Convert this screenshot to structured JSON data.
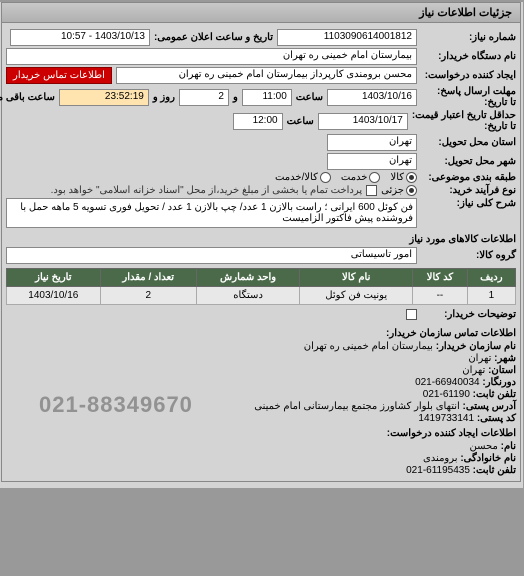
{
  "panel": {
    "title": "جزئیات اطلاعات نیاز"
  },
  "header": {
    "need_no_label": "شماره نیاز:",
    "need_no": "1103090614001812",
    "announce_label": "تاریخ و ساعت اعلان عمومی:",
    "announce_value": "1403/10/13 - 10:57",
    "buyer_device_label": "نام دستگاه خریدار:",
    "buyer_device": "بیمارستان امام خمینی ره  تهران",
    "requester_label": "ایجاد کننده درخواست:",
    "requester": "محسن برومندی کارپرداز بیمارستان امام خمینی ره  تهران",
    "contact_btn": "اطلاعات تماس خریدار",
    "deadline_send_label": "مهلت ارسال پاسخ:",
    "to_date_label": "تا تاریخ:",
    "deadline_date": "1403/10/16",
    "hour_label": "ساعت",
    "deadline_hour": "11:00",
    "and_label": "و",
    "days": "2",
    "days_label": "روز و",
    "remain": "23:52:19",
    "remain_label": "ساعت باقی مانده",
    "min_valid_label": "حداقل تاریخ اعتبار قیمت:",
    "min_valid_to_label": "تا تاریخ:",
    "min_valid_date": "1403/10/17",
    "min_valid_hour": "12:00",
    "province_label": "استان محل تحویل:",
    "province": "تهران",
    "city_label": "شهر محل تحویل:",
    "city": "تهران",
    "package_label": "طبقه بندی موضوعی:",
    "package_opts": {
      "kala": "کالا",
      "khadamat": "خدمت",
      "kala_khadamat": "کالا/خدمت",
      "selected": "kala"
    },
    "process_label": "نوع فرآیند خرید:",
    "process_opts": {
      "jozei": "جزئی",
      "selected": "jozei"
    },
    "process_note": "پرداخت تمام یا بخشی از مبلغ خرید،از محل \"اسناد خزانه اسلامی\" خواهد بود.",
    "process_checkbox_checked": false
  },
  "desc": {
    "label": "شرح کلی نیاز:",
    "text": "فن کوئل 600 ایرانی ؛ راست بالازن 1 عدد/ چپ بالازن 1 عدد / تحویل فوری تسویه 5 ماهه حمل با فروشنده پیش فاکتور الزامیست"
  },
  "group": {
    "section_title": "اطلاعات کالاهای مورد نیاز",
    "label": "گروه کالا:",
    "value": "امور تاسیساتی"
  },
  "table": {
    "cols": [
      "ردیف",
      "کد کالا",
      "نام کالا",
      "واحد شمارش",
      "تعداد / مقدار",
      "تاریخ نیاز"
    ],
    "rows": [
      [
        "1",
        "--",
        "یونیت فن کوئل",
        "دستگاه",
        "2",
        "1403/10/16"
      ]
    ]
  },
  "buyer_notes": {
    "label": "توضیحات خریدار:",
    "checkbox_checked": false
  },
  "org": {
    "header": "اطلاعات تماس سازمان خریدار:",
    "lines": [
      {
        "k": "نام سازمان خریدار:",
        "v": "بیمارستان امام خمینی ره تهران"
      },
      {
        "k": "شهر:",
        "v": "تهران"
      },
      {
        "k": "استان:",
        "v": "تهران"
      },
      {
        "k": "دورنگار:",
        "v": "66940034-021"
      },
      {
        "k": "تلفن ثابت:",
        "v": "61190-021"
      },
      {
        "k": "آدرس پستی:",
        "v": "انتهای بلوار کشاورز مجتمع بیمارستانی امام خمینی"
      },
      {
        "k": "کد پستی:",
        "v": "1419733141"
      }
    ],
    "header2": "اطلاعات ایجاد کننده درخواست:",
    "lines2": [
      {
        "k": "نام:",
        "v": "محسن"
      },
      {
        "k": "نام خانوادگی:",
        "v": "برومندی"
      },
      {
        "k": "تلفن ثابت:",
        "v": "61195435-021"
      }
    ]
  },
  "watermark_phone": "021-88349670"
}
